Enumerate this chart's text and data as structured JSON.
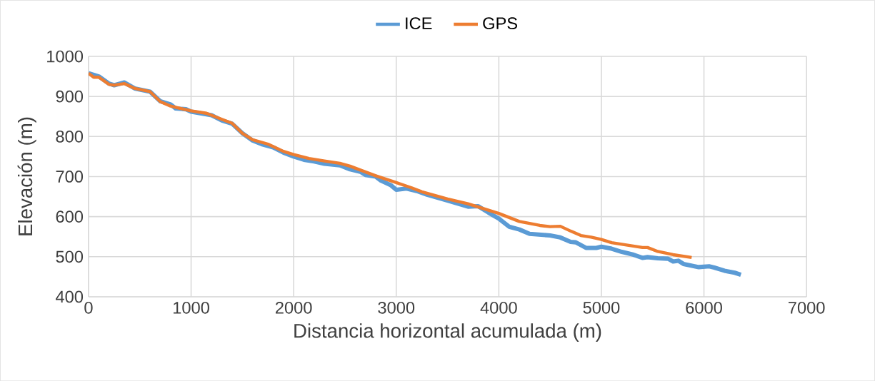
{
  "chart_data": {
    "type": "line",
    "xlabel": "Distancia horizontal acumulada (m)",
    "ylabel": "Elevación (m)",
    "xlim": [
      0,
      7000
    ],
    "xticks": [
      0,
      1000,
      2000,
      3000,
      4000,
      5000,
      6000,
      7000
    ],
    "ylim": [
      400,
      1000
    ],
    "yticks": [
      400,
      500,
      600,
      700,
      800,
      900,
      1000
    ],
    "grid": true,
    "legend": "top",
    "marker": "none",
    "line_style": "solid",
    "series": [
      {
        "name": "ICE",
        "color": "#5b9bd5",
        "x": [
          0,
          100,
          200,
          250,
          350,
          450,
          600,
          700,
          800,
          850,
          950,
          1000,
          1200,
          1300,
          1400,
          1500,
          1600,
          1700,
          1800,
          1900,
          2000,
          2100,
          2200,
          2300,
          2450,
          2550,
          2650,
          2700,
          2800,
          2850,
          2950,
          3000,
          3100,
          3200,
          3300,
          3500,
          3700,
          3800,
          3900,
          4000,
          4100,
          4200,
          4300,
          4500,
          4600,
          4700,
          4750,
          4850,
          4950,
          5000,
          5100,
          5200,
          5300,
          5400,
          5450,
          5550,
          5650,
          5700,
          5750,
          5800,
          5950,
          6050,
          6100,
          6200,
          6300,
          6360
        ],
        "values": [
          958,
          950,
          932,
          928,
          935,
          920,
          912,
          888,
          880,
          870,
          868,
          862,
          853,
          840,
          832,
          808,
          790,
          780,
          773,
          760,
          750,
          742,
          738,
          732,
          728,
          718,
          712,
          704,
          700,
          690,
          678,
          667,
          670,
          664,
          655,
          640,
          625,
          626,
          610,
          595,
          575,
          568,
          557,
          553,
          548,
          537,
          536,
          522,
          522,
          525,
          520,
          512,
          506,
          497,
          499,
          496,
          495,
          488,
          490,
          482,
          474,
          476,
          473,
          465,
          460,
          455
        ]
      },
      {
        "name": "GPS",
        "color": "#ed7d31",
        "x": [
          0,
          50,
          100,
          200,
          250,
          350,
          450,
          600,
          700,
          800,
          900,
          1000,
          1150,
          1300,
          1400,
          1500,
          1600,
          1750,
          1900,
          2000,
          2150,
          2300,
          2450,
          2550,
          2800,
          3000,
          3150,
          3250,
          3500,
          3700,
          3800,
          4000,
          4200,
          4400,
          4500,
          4600,
          4700,
          4800,
          4900,
          5000,
          5100,
          5300,
          5400,
          5450,
          5550,
          5700,
          5880
        ],
        "values": [
          958,
          948,
          948,
          930,
          928,
          932,
          920,
          912,
          887,
          876,
          870,
          864,
          858,
          843,
          833,
          808,
          792,
          781,
          763,
          755,
          745,
          739,
          733,
          726,
          702,
          685,
          672,
          662,
          644,
          632,
          624,
          608,
          588,
          578,
          575,
          576,
          564,
          553,
          549,
          543,
          535,
          527,
          523,
          523,
          513,
          505,
          498
        ]
      }
    ]
  }
}
